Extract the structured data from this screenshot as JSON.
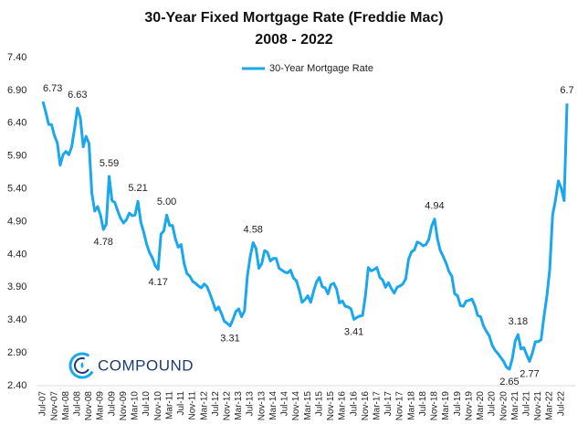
{
  "chart_data": {
    "type": "line",
    "title": "30-Year Fixed Mortgage Rate (Freddie Mac)",
    "subtitle": "2008 - 2022",
    "logo": "COMPOUND",
    "legend": "top",
    "grid": false,
    "ylim": [
      2.4,
      7.4
    ],
    "yticks": [
      {
        "value": 2.4,
        "label": "2.40"
      },
      {
        "value": 2.9,
        "label": "2.90"
      },
      {
        "value": 3.4,
        "label": "3.40"
      },
      {
        "value": 3.9,
        "label": "3.90"
      },
      {
        "value": 4.4,
        "label": "4.40"
      },
      {
        "value": 4.9,
        "label": "4.90"
      },
      {
        "value": 5.4,
        "label": "5.40"
      },
      {
        "value": 5.9,
        "label": "5.90"
      },
      {
        "value": 6.4,
        "label": "6.40"
      },
      {
        "value": 6.9,
        "label": "6.90"
      },
      {
        "value": 7.4,
        "label": "7.40"
      }
    ],
    "categories": [
      "Jul-07",
      null,
      null,
      null,
      "Nov-07",
      null,
      null,
      null,
      "Mar-08",
      null,
      null,
      null,
      "Jul-08",
      null,
      null,
      null,
      "Nov-08",
      null,
      null,
      null,
      "Mar-09",
      null,
      null,
      null,
      "Jul-09",
      null,
      null,
      null,
      "Nov-09",
      null,
      null,
      null,
      "Mar-10",
      null,
      null,
      null,
      "Jul-10",
      null,
      null,
      null,
      "Nov-10",
      null,
      null,
      null,
      "Mar-11",
      null,
      null,
      null,
      "Jul-11",
      null,
      null,
      null,
      "Nov-11",
      null,
      null,
      null,
      "Mar-12",
      null,
      null,
      null,
      "Jul-12",
      null,
      null,
      null,
      "Nov-12",
      null,
      null,
      null,
      "Mar-13",
      null,
      null,
      null,
      "Jul-13",
      null,
      null,
      null,
      "Nov-13",
      null,
      null,
      null,
      "Mar-14",
      null,
      null,
      null,
      "Jul-14",
      null,
      null,
      null,
      "Nov-14",
      null,
      null,
      null,
      "Mar-15",
      null,
      null,
      null,
      "Jul-15",
      null,
      null,
      null,
      "Nov-15",
      null,
      null,
      null,
      "Mar-16",
      null,
      null,
      null,
      "Jul-16",
      null,
      null,
      null,
      "Nov-16",
      null,
      null,
      null,
      "Mar-17",
      null,
      null,
      null,
      "Jul-17",
      null,
      null,
      null,
      "Nov-17",
      null,
      null,
      null,
      "Mar-18",
      null,
      null,
      null,
      "Jul-18",
      null,
      null,
      null,
      "Nov-18",
      null,
      null,
      null,
      "Mar-19",
      null,
      null,
      null,
      "Jul-19",
      null,
      null,
      null,
      "Nov-19",
      null,
      null,
      null,
      "Mar-20",
      null,
      null,
      null,
      "Jul-20",
      null,
      null,
      null,
      "Nov-20",
      null,
      null,
      null,
      "Mar-21",
      null,
      null,
      null,
      "Jul-21",
      null,
      null,
      null,
      "Nov-21",
      null,
      null,
      null,
      "Mar-22",
      null,
      null,
      null,
      "Jul-22",
      null,
      null
    ],
    "series": [
      {
        "name": "30-Year Mortgage Rate",
        "color": "#1aa7ec",
        "values": [
          6.73,
          6.57,
          6.38,
          6.38,
          6.21,
          6.1,
          5.76,
          5.92,
          5.97,
          5.92,
          6.04,
          6.32,
          6.63,
          6.48,
          6.04,
          6.2,
          6.09,
          5.33,
          5.06,
          5.13,
          5.0,
          4.78,
          4.86,
          5.59,
          5.22,
          5.19,
          5.06,
          4.95,
          4.88,
          4.93,
          5.03,
          4.99,
          5.0,
          5.21,
          4.89,
          4.74,
          4.56,
          4.43,
          4.35,
          4.23,
          4.17,
          4.71,
          4.76,
          5.0,
          4.84,
          4.84,
          4.64,
          4.51,
          4.55,
          4.27,
          4.11,
          4.07,
          3.99,
          3.96,
          3.92,
          3.89,
          3.95,
          3.91,
          3.8,
          3.68,
          3.55,
          3.6,
          3.5,
          3.38,
          3.35,
          3.31,
          3.41,
          3.53,
          3.57,
          3.45,
          3.54,
          4.07,
          4.37,
          4.58,
          4.49,
          4.19,
          4.26,
          4.46,
          4.43,
          4.3,
          4.34,
          4.34,
          4.19,
          4.16,
          4.13,
          4.12,
          4.16,
          4.04,
          4.0,
          3.86,
          3.67,
          3.71,
          3.77,
          3.67,
          3.84,
          3.98,
          4.05,
          3.91,
          3.89,
          3.8,
          3.94,
          3.96,
          3.87,
          3.66,
          3.69,
          3.61,
          3.6,
          3.57,
          3.41,
          3.44,
          3.46,
          3.47,
          3.77,
          4.2,
          4.15,
          4.17,
          4.2,
          4.05,
          4.01,
          3.9,
          3.97,
          3.88,
          3.81,
          3.9,
          3.92,
          3.95,
          4.03,
          4.33,
          4.44,
          4.47,
          4.59,
          4.57,
          4.53,
          4.55,
          4.63,
          4.83,
          4.94,
          4.64,
          4.46,
          4.37,
          4.27,
          4.14,
          4.07,
          3.8,
          3.77,
          3.62,
          3.61,
          3.69,
          3.7,
          3.72,
          3.62,
          3.47,
          3.45,
          3.31,
          3.23,
          3.16,
          3.02,
          2.94,
          2.89,
          2.83,
          2.77,
          2.68,
          2.65,
          2.81,
          3.08,
          3.18,
          2.96,
          2.98,
          2.87,
          2.77,
          2.9,
          3.07,
          3.07,
          3.1,
          3.45,
          3.76,
          4.17,
          5.0,
          5.23,
          5.52,
          5.41,
          5.22,
          6.7
        ],
        "value_labels": [
          "6.73",
          null,
          null,
          null,
          null,
          null,
          null,
          null,
          null,
          null,
          null,
          null,
          "6.63",
          null,
          null,
          null,
          null,
          null,
          null,
          null,
          null,
          "4.78",
          null,
          "5.59",
          null,
          null,
          null,
          null,
          null,
          null,
          null,
          null,
          null,
          "5.21",
          null,
          null,
          null,
          null,
          null,
          null,
          "4.17",
          null,
          null,
          "5.00",
          null,
          null,
          null,
          null,
          null,
          null,
          null,
          null,
          null,
          null,
          null,
          null,
          null,
          null,
          null,
          null,
          null,
          null,
          null,
          null,
          null,
          "3.31",
          null,
          null,
          null,
          null,
          null,
          null,
          null,
          "4.58",
          null,
          null,
          null,
          null,
          null,
          null,
          null,
          null,
          null,
          null,
          null,
          null,
          null,
          null,
          null,
          null,
          null,
          null,
          null,
          null,
          null,
          null,
          null,
          null,
          null,
          null,
          null,
          null,
          null,
          null,
          null,
          null,
          null,
          null,
          "3.41",
          null,
          null,
          null,
          null,
          null,
          null,
          null,
          null,
          null,
          null,
          null,
          null,
          null,
          null,
          null,
          null,
          null,
          null,
          null,
          null,
          null,
          null,
          null,
          null,
          null,
          null,
          null,
          "4.94",
          null,
          null,
          null,
          null,
          null,
          null,
          null,
          null,
          null,
          null,
          null,
          null,
          null,
          null,
          null,
          null,
          null,
          null,
          null,
          null,
          null,
          null,
          null,
          null,
          null,
          "2.65",
          null,
          null,
          "3.18",
          null,
          null,
          null,
          "2.77",
          null,
          null,
          null,
          null,
          null,
          null,
          null,
          null,
          null,
          null,
          null,
          null,
          "6.7"
        ]
      }
    ]
  }
}
